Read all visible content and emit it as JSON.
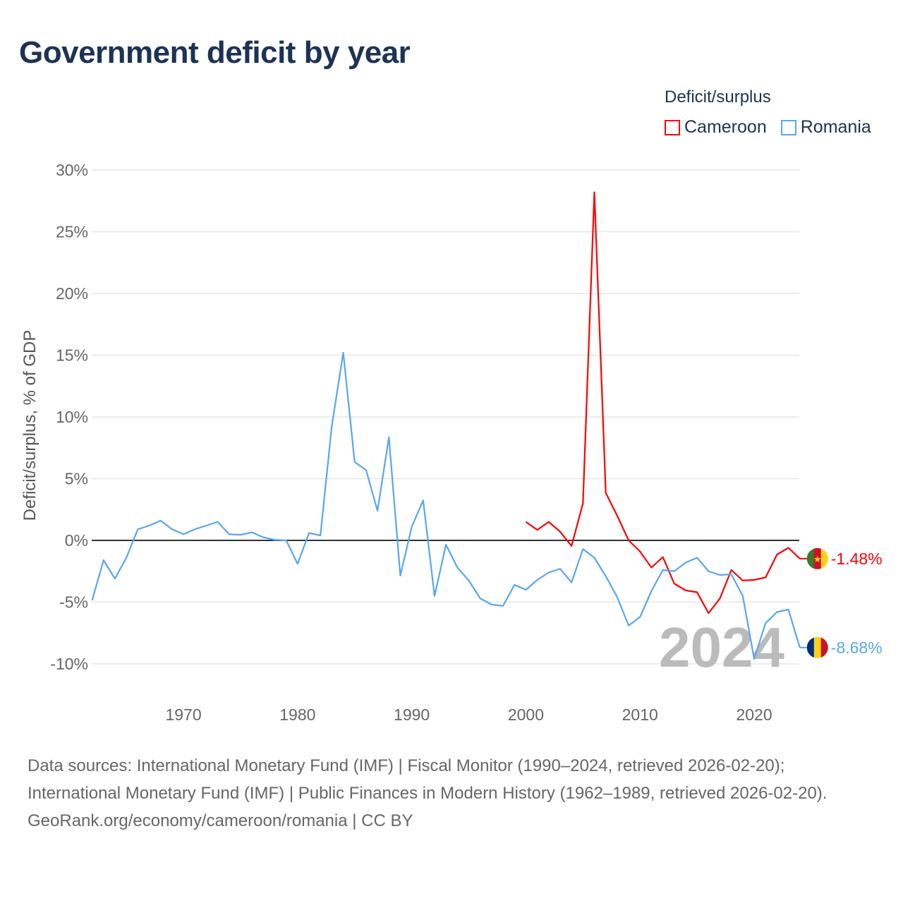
{
  "title": "Government deficit by year",
  "legend": {
    "title": "Deficit/surplus",
    "items": [
      {
        "label": "Cameroon",
        "color": "#ff0000"
      },
      {
        "label": "Romania",
        "color": "#5aa5ef"
      }
    ]
  },
  "year_watermark": "2024",
  "footer": {
    "sources": "Data sources: International Monetary Fund (IMF) | Fiscal Monitor (1990–2024, retrieved 2026-02-20); International Monetary Fund (IMF) | Public Finances in Modern History (1962–1989, retrieved 2026-02-20).",
    "credit": "GeoRank.org/economy/cameroon/romania | CC BY"
  },
  "chart_data": {
    "type": "line",
    "title": "Government deficit by year",
    "xlabel": "",
    "ylabel": "Deficit/surplus, % of GDP",
    "xlim": [
      1962,
      2024
    ],
    "ylim": [
      -12.5,
      30
    ],
    "x_ticks": [
      1970,
      1980,
      1990,
      2000,
      2010,
      2020
    ],
    "y_ticks": [
      -10,
      -5,
      0,
      5,
      10,
      15,
      20,
      25,
      30
    ],
    "y_tick_labels": [
      "-10%",
      "-5%",
      "0%",
      "5%",
      "10%",
      "15%",
      "20%",
      "25%",
      "30%"
    ],
    "grid": true,
    "legend_position": "top-right",
    "series": [
      {
        "name": "Cameroon",
        "color": "#ff0000",
        "end_label": "-1.48%",
        "x": [
          2000,
          2001,
          2002,
          2003,
          2004,
          2005,
          2006,
          2007,
          2008,
          2009,
          2010,
          2011,
          2012,
          2013,
          2014,
          2015,
          2016,
          2017,
          2018,
          2019,
          2020,
          2021,
          2022,
          2023,
          2024
        ],
        "values": [
          1.5,
          0.85,
          1.5,
          0.7,
          -0.45,
          3.0,
          28.2,
          3.85,
          2.0,
          0.0,
          -0.9,
          -2.2,
          -1.35,
          -3.5,
          -4.05,
          -4.2,
          -5.9,
          -4.7,
          -2.4,
          -3.25,
          -3.2,
          -3.0,
          -1.15,
          -0.6,
          -1.48
        ]
      },
      {
        "name": "Romania",
        "color": "#5aa5ef",
        "end_label": "-8.68%",
        "x": [
          1962,
          1963,
          1964,
          1965,
          1966,
          1967,
          1968,
          1969,
          1970,
          1971,
          1972,
          1973,
          1974,
          1975,
          1976,
          1977,
          1978,
          1979,
          1980,
          1981,
          1982,
          1983,
          1984,
          1985,
          1986,
          1987,
          1988,
          1989,
          1990,
          1991,
          1992,
          1993,
          1994,
          1995,
          1996,
          1997,
          1998,
          1999,
          2000,
          2001,
          2002,
          2003,
          2004,
          2005,
          2006,
          2007,
          2008,
          2009,
          2010,
          2011,
          2012,
          2013,
          2014,
          2015,
          2016,
          2017,
          2018,
          2019,
          2020,
          2021,
          2022,
          2023,
          2024
        ],
        "values": [
          -4.86,
          -1.6,
          -3.1,
          -1.4,
          0.9,
          1.2,
          1.6,
          0.9,
          0.5,
          0.9,
          1.2,
          1.5,
          0.5,
          0.45,
          0.65,
          0.25,
          0.05,
          0.0,
          -1.9,
          0.6,
          0.4,
          9.3,
          15.2,
          6.35,
          5.7,
          2.4,
          8.35,
          -2.85,
          1.1,
          3.25,
          -4.5,
          -0.35,
          -2.2,
          -3.25,
          -4.7,
          -5.2,
          -5.3,
          -3.6,
          -4.0,
          -3.2,
          -2.6,
          -2.3,
          -3.4,
          -0.7,
          -1.4,
          -2.9,
          -4.6,
          -6.9,
          -6.2,
          -4.1,
          -2.4,
          -2.5,
          -1.8,
          -1.4,
          -2.5,
          -2.8,
          -2.75,
          -4.5,
          -9.6,
          -6.7,
          -5.8,
          -5.6,
          -8.68
        ]
      }
    ]
  }
}
